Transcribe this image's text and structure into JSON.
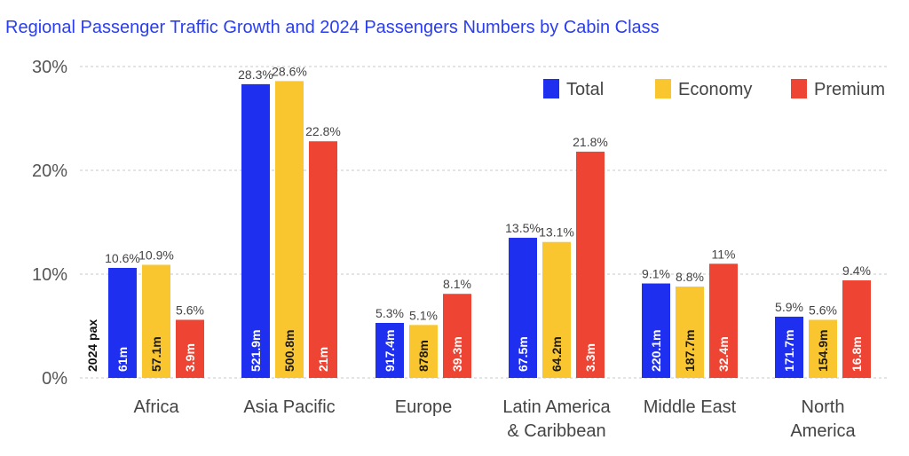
{
  "title": "Regional Passenger Traffic Growth and 2024 Passengers Numbers by Cabin Class",
  "pax_label": "2024 pax",
  "colors": {
    "Total": "#1f2ff0",
    "Economy": "#f9c62f",
    "Premium": "#ee4433"
  },
  "chart_data": {
    "type": "bar",
    "title": "Regional Passenger Traffic Growth and 2024 Passengers Numbers by Cabin Class",
    "xlabel": "",
    "ylabel": "",
    "ylim": [
      0,
      30
    ],
    "yticks": [
      "0%",
      "10%",
      "20%",
      "30%"
    ],
    "grid": true,
    "legend_position": "top-right",
    "categories": [
      "Africa",
      "Asia Pacific",
      "Europe",
      "Latin America & Caribbean",
      "Middle East",
      "North America"
    ],
    "category_lines": [
      [
        "Africa"
      ],
      [
        "Asia Pacific"
      ],
      [
        "Europe"
      ],
      [
        "Latin America",
        "& Caribbean"
      ],
      [
        "Middle East"
      ],
      [
        "North",
        "America"
      ]
    ],
    "series": [
      {
        "name": "Total",
        "values": [
          10.6,
          28.3,
          5.3,
          13.5,
          9.1,
          5.9
        ],
        "value_labels": [
          "10.6%",
          "28.3%",
          "5.3%",
          "13.5%",
          "9.1%",
          "5.9%"
        ],
        "passengers": [
          "61m",
          "521.9m",
          "917.4m",
          "67.5m",
          "220.1m",
          "171.7m"
        ]
      },
      {
        "name": "Economy",
        "values": [
          10.9,
          28.6,
          5.1,
          13.1,
          8.8,
          5.6
        ],
        "value_labels": [
          "10.9%",
          "28.6%",
          "5.1%",
          "13.1%",
          "8.8%",
          "5.6%"
        ],
        "passengers": [
          "57.1m",
          "500.8m",
          "878m",
          "64.2m",
          "187.7m",
          "154.9m"
        ]
      },
      {
        "name": "Premium",
        "values": [
          5.6,
          22.8,
          8.1,
          21.8,
          11,
          9.4
        ],
        "value_labels": [
          "5.6%",
          "22.8%",
          "8.1%",
          "21.8%",
          "11%",
          "9.4%"
        ],
        "passengers": [
          "3.9m",
          "21m",
          "39.3m",
          "3.3m",
          "32.4m",
          "16.8m"
        ]
      }
    ]
  }
}
